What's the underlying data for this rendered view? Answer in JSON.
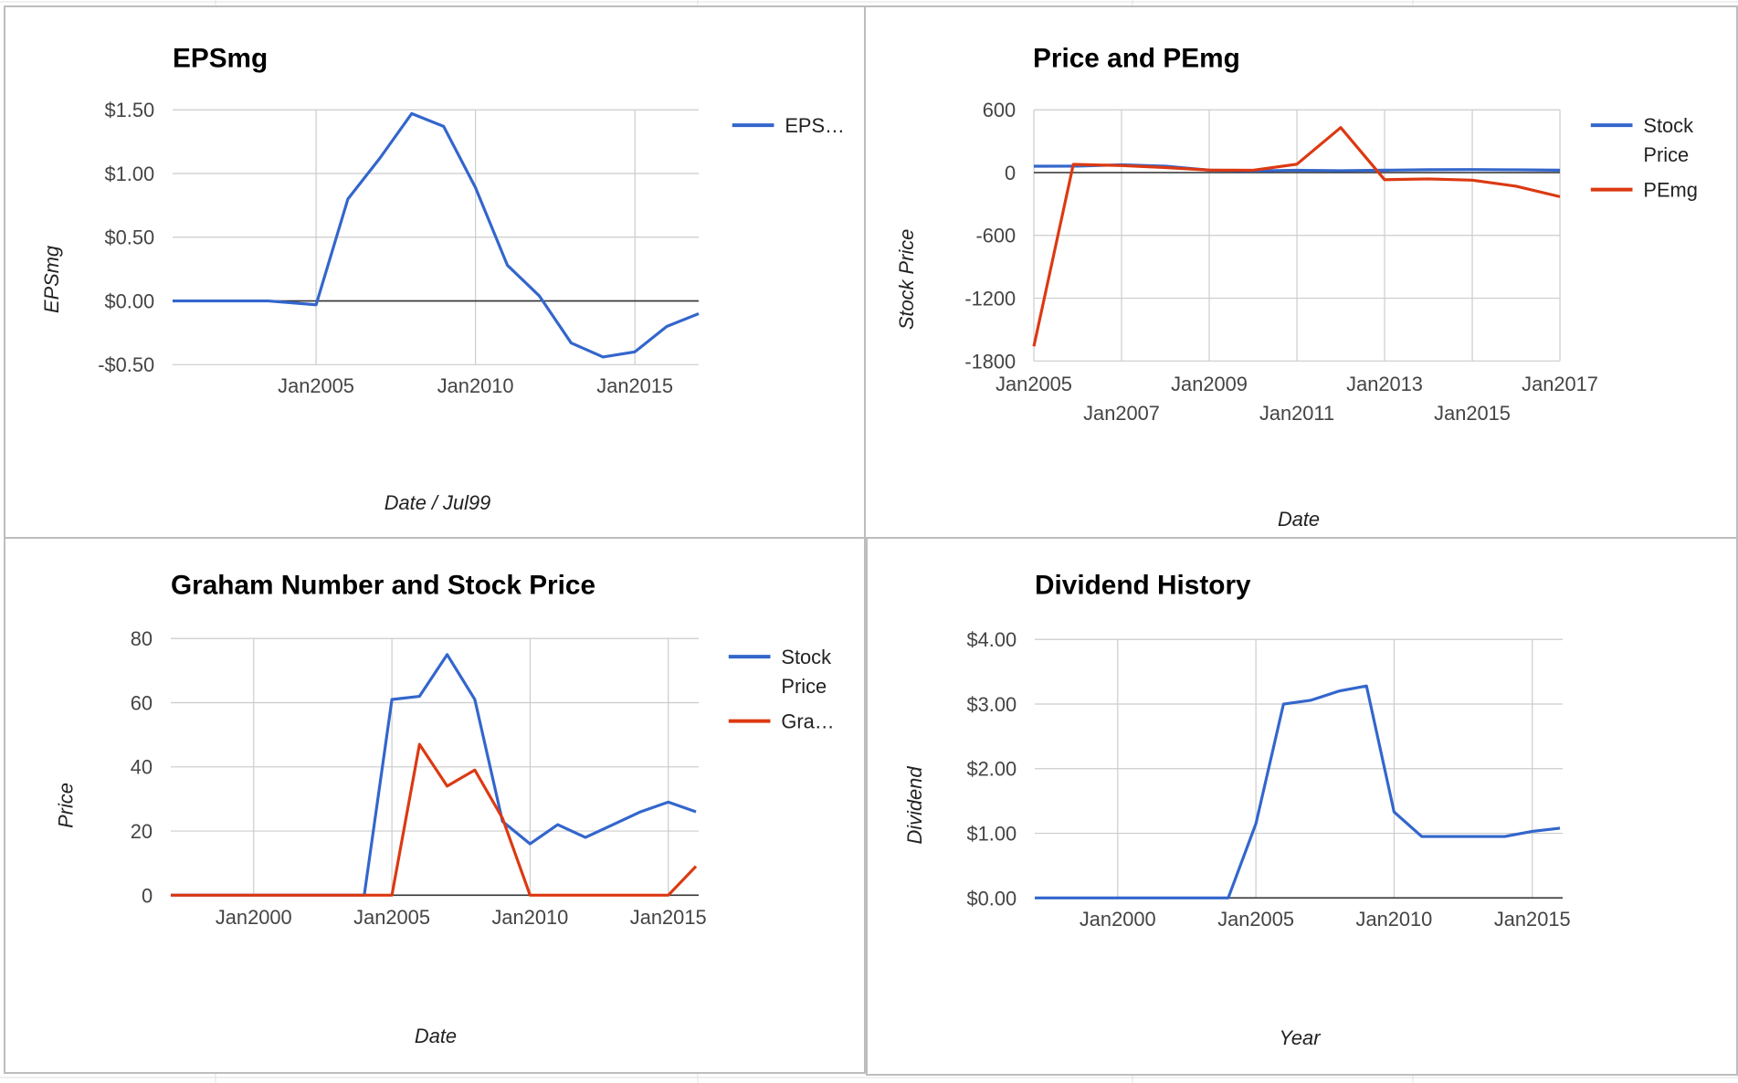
{
  "colors": {
    "blue": "#3366cc",
    "red": "#dc3912",
    "grid": "#cccccc",
    "baseline": "#333333"
  },
  "chart_data": [
    {
      "id": "eps",
      "type": "line",
      "title": "EPSmg",
      "xlabel": "Date / Jul99",
      "ylabel": "EPSmg",
      "xlim": [
        2000.5,
        2017
      ],
      "ylim": [
        -0.5,
        1.5
      ],
      "y_ticks": [
        {
          "value": 1.5,
          "label": "$1.50"
        },
        {
          "value": 1.0,
          "label": "$1.00"
        },
        {
          "value": 0.5,
          "label": "$0.50"
        },
        {
          "value": 0.0,
          "label": "$0.00"
        },
        {
          "value": -0.5,
          "label": "-$0.50"
        }
      ],
      "x_ticks": [
        {
          "value": 2005,
          "label": "Jan2005"
        },
        {
          "value": 2010,
          "label": "Jan2010"
        },
        {
          "value": 2015,
          "label": "Jan2015"
        }
      ],
      "grid": true,
      "legend_position": "right",
      "series": [
        {
          "name": "EPS…",
          "color": "#3366cc",
          "x": [
            2000.5,
            2003.5,
            2005,
            2006,
            2007,
            2008,
            2009,
            2010,
            2011,
            2012,
            2013,
            2014,
            2015,
            2016,
            2017
          ],
          "y": [
            0.0,
            0.0,
            -0.03,
            0.8,
            1.12,
            1.47,
            1.37,
            0.89,
            0.28,
            0.04,
            -0.33,
            -0.44,
            -0.4,
            -0.2,
            -0.1
          ]
        }
      ]
    },
    {
      "id": "price-pe",
      "type": "line",
      "title": "Price and PEmg",
      "xlabel": "Date",
      "ylabel": "Stock Price",
      "xlim": [
        2005,
        2017
      ],
      "ylim": [
        -1800,
        600
      ],
      "y_ticks": [
        {
          "value": 600,
          "label": "600"
        },
        {
          "value": 0,
          "label": "0"
        },
        {
          "value": -600,
          "label": "-600"
        },
        {
          "value": -1200,
          "label": "-1200"
        },
        {
          "value": -1800,
          "label": "-1800"
        }
      ],
      "x_ticks": [
        {
          "value": 2005,
          "label": "Jan2005",
          "row": 1
        },
        {
          "value": 2007,
          "label": "Jan2007",
          "row": 2
        },
        {
          "value": 2009,
          "label": "Jan2009",
          "row": 1
        },
        {
          "value": 2011,
          "label": "Jan2011",
          "row": 2
        },
        {
          "value": 2013,
          "label": "Jan2013",
          "row": 1
        },
        {
          "value": 2015,
          "label": "Jan2015",
          "row": 2
        },
        {
          "value": 2017,
          "label": "Jan2017",
          "row": 1
        }
      ],
      "grid": true,
      "legend_position": "right",
      "series": [
        {
          "name": [
            "Stock",
            "Price"
          ],
          "color": "#3366cc",
          "x": [
            2005,
            2006,
            2007,
            2008,
            2009,
            2010,
            2011,
            2012,
            2013,
            2014,
            2015,
            2016,
            2017
          ],
          "y": [
            61,
            62,
            75,
            61,
            23,
            16,
            22,
            18,
            23,
            27,
            29,
            26,
            23
          ]
        },
        {
          "name": [
            "PEmg"
          ],
          "color": "#dc3912",
          "x": [
            2005,
            2005.9,
            2007,
            2008,
            2009,
            2010,
            2011,
            2012,
            2013,
            2014,
            2015,
            2016,
            2017
          ],
          "y": [
            -1660,
            78,
            67,
            48,
            24,
            22,
            80,
            430,
            -68,
            -60,
            -72,
            -130,
            -230
          ]
        }
      ]
    },
    {
      "id": "graham",
      "type": "line",
      "title": "Graham Number and Stock Price",
      "xlabel": "Date",
      "ylabel": "Price",
      "xlim": [
        1997,
        2016.1
      ],
      "ylim": [
        0,
        80
      ],
      "y_ticks": [
        {
          "value": 80,
          "label": "80"
        },
        {
          "value": 60,
          "label": "60"
        },
        {
          "value": 40,
          "label": "40"
        },
        {
          "value": 20,
          "label": "20"
        },
        {
          "value": 0,
          "label": "0"
        }
      ],
      "x_ticks": [
        {
          "value": 2000,
          "label": "Jan2000"
        },
        {
          "value": 2005,
          "label": "Jan2005"
        },
        {
          "value": 2010,
          "label": "Jan2010"
        },
        {
          "value": 2015,
          "label": "Jan2015"
        }
      ],
      "grid": true,
      "legend_position": "right",
      "series": [
        {
          "name": [
            "Stock",
            "Price"
          ],
          "color": "#3366cc",
          "x": [
            1997,
            2004,
            2005,
            2006,
            2007,
            2008,
            2009,
            2010,
            2011,
            2012,
            2013,
            2014,
            2015,
            2016
          ],
          "y": [
            0,
            0,
            61,
            62,
            75,
            61,
            23,
            16,
            22,
            18,
            22,
            26,
            29,
            26
          ]
        },
        {
          "name": [
            "Gra…"
          ],
          "color": "#dc3912",
          "x": [
            1997,
            2005,
            2006,
            2007,
            2008,
            2009,
            2010,
            2011,
            2012,
            2013,
            2014,
            2015,
            2016
          ],
          "y": [
            0,
            0,
            47,
            34,
            39,
            24,
            0,
            0,
            0,
            0,
            0,
            0,
            9
          ]
        }
      ]
    },
    {
      "id": "dividend",
      "type": "line",
      "title": "Dividend History",
      "xlabel": "Year",
      "ylabel": "Dividend",
      "xlim": [
        1997,
        2016.1
      ],
      "ylim": [
        0,
        4
      ],
      "y_ticks": [
        {
          "value": 4,
          "label": "$4.00"
        },
        {
          "value": 3,
          "label": "$3.00"
        },
        {
          "value": 2,
          "label": "$2.00"
        },
        {
          "value": 1,
          "label": "$1.00"
        },
        {
          "value": 0,
          "label": "$0.00"
        }
      ],
      "x_ticks": [
        {
          "value": 2000,
          "label": "Jan2000"
        },
        {
          "value": 2005,
          "label": "Jan2005"
        },
        {
          "value": 2010,
          "label": "Jan2010"
        },
        {
          "value": 2015,
          "label": "Jan2015"
        }
      ],
      "grid": true,
      "legend_position": "none",
      "series": [
        {
          "name": "",
          "color": "#3366cc",
          "x": [
            1997,
            2004,
            2005,
            2006,
            2007,
            2008,
            2009,
            2010,
            2011,
            2012,
            2013,
            2014,
            2015,
            2016
          ],
          "y": [
            0,
            0,
            1.15,
            3.0,
            3.06,
            3.2,
            3.28,
            1.33,
            0.95,
            0.95,
            0.95,
            0.95,
            1.03,
            1.08
          ]
        }
      ]
    }
  ]
}
